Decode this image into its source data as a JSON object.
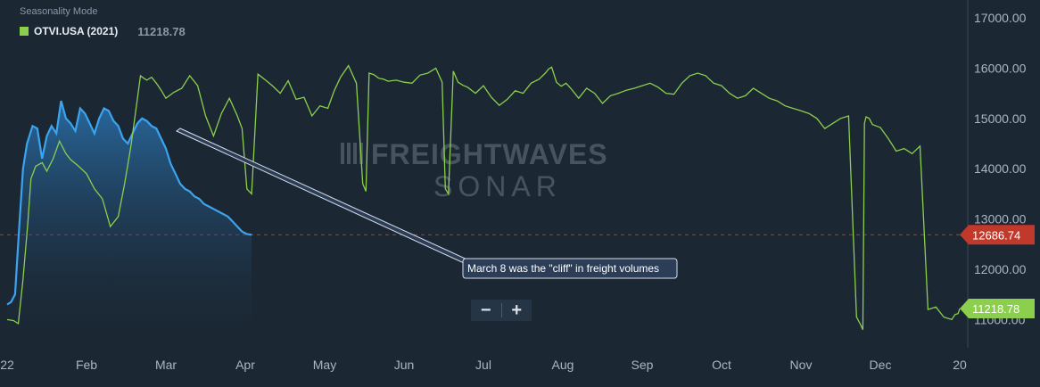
{
  "header": {
    "mode_label": "Seasonality Mode",
    "series_name": "OTVI.USA (2021)",
    "series_value": "11218.78"
  },
  "watermark": {
    "line1": "FREIGHTWAVES",
    "line2": "SONAR"
  },
  "annotation": {
    "text": "March 8 was the \"cliff\" in freight volumes"
  },
  "zoom": {
    "minus": "−",
    "plus": "+"
  },
  "colors": {
    "background": "#1b2733",
    "green_series": "#8ccf4d",
    "blue_series": "#3ba4f0",
    "reference_line": "#c0392b",
    "axis_text": "#aab6c3"
  },
  "chart_data": {
    "type": "line",
    "title": "",
    "xlabel": "",
    "ylabel": "",
    "x_ticks": [
      "22",
      "Feb",
      "Mar",
      "Apr",
      "May",
      "Jun",
      "Jul",
      "Aug",
      "Sep",
      "Oct",
      "Nov",
      "Dec",
      "20"
    ],
    "y_ticks": [
      "11000.00",
      "12000.00",
      "13000.00",
      "14000.00",
      "15000.00",
      "16000.00",
      "17000.00"
    ],
    "ylim": [
      10750,
      17100
    ],
    "xlim": [
      0,
      12
    ],
    "grid": false,
    "reference_line": {
      "value": 12686.74,
      "label": "12686.74"
    },
    "last_value_label": {
      "value": 11218.78,
      "label": "11218.78"
    },
    "series": [
      {
        "name": "OTVI.USA (2021)",
        "x": [
          0.0,
          0.08,
          0.14,
          0.2,
          0.26,
          0.3,
          0.36,
          0.44,
          0.5,
          0.58,
          0.66,
          0.74,
          0.8,
          0.9,
          1.0,
          1.1,
          1.2,
          1.3,
          1.4,
          1.48,
          1.56,
          1.62,
          1.68,
          1.72,
          1.76,
          1.82,
          1.88,
          1.94,
          2.0,
          2.1,
          2.2,
          2.3,
          2.4,
          2.5,
          2.6,
          2.7,
          2.8,
          2.9,
          2.96,
          3.02,
          3.08,
          3.16,
          3.24,
          3.34,
          3.44,
          3.54,
          3.64,
          3.74,
          3.84,
          3.94,
          4.04,
          4.12,
          4.2,
          4.3,
          4.4,
          4.48,
          4.52,
          4.56,
          4.62,
          4.68,
          4.74,
          4.8,
          4.9,
          5.0,
          5.1,
          5.2,
          5.3,
          5.4,
          5.48,
          5.52,
          5.56,
          5.62,
          5.68,
          5.74,
          5.8,
          5.9,
          6.0,
          6.1,
          6.2,
          6.3,
          6.4,
          6.5,
          6.6,
          6.7,
          6.78,
          6.82,
          6.86,
          6.92,
          6.98,
          7.04,
          7.1,
          7.2,
          7.3,
          7.4,
          7.5,
          7.6,
          7.7,
          7.8,
          7.9,
          8.0,
          8.1,
          8.2,
          8.3,
          8.4,
          8.5,
          8.6,
          8.7,
          8.8,
          8.9,
          9.0,
          9.1,
          9.2,
          9.3,
          9.4,
          9.5,
          9.6,
          9.7,
          9.8,
          9.9,
          10.0,
          10.1,
          10.2,
          10.3,
          10.4,
          10.5,
          10.6,
          10.7,
          10.75,
          10.78,
          10.8,
          10.82,
          10.86,
          10.9,
          10.95,
          11.0,
          11.1,
          11.2,
          11.3,
          11.4,
          11.5,
          11.6,
          11.7,
          11.8,
          11.9,
          11.94,
          11.98,
          12.0
        ],
        "y": [
          11000,
          10980,
          10920,
          11800,
          12900,
          13800,
          14050,
          14120,
          13950,
          14200,
          14550,
          14300,
          14180,
          14050,
          13900,
          13600,
          13400,
          12850,
          13050,
          13700,
          14450,
          15150,
          15850,
          15800,
          15760,
          15820,
          15700,
          15560,
          15400,
          15520,
          15600,
          15850,
          15650,
          15050,
          14650,
          15100,
          15400,
          15050,
          14800,
          13600,
          13500,
          15880,
          15780,
          15650,
          15500,
          15750,
          15380,
          15420,
          15050,
          15250,
          15200,
          15550,
          15820,
          16050,
          15700,
          13700,
          13550,
          15900,
          15870,
          15800,
          15780,
          15740,
          15760,
          15720,
          15700,
          15860,
          15900,
          16000,
          15720,
          13600,
          13500,
          15940,
          15720,
          15660,
          15620,
          15500,
          15650,
          15420,
          15260,
          15380,
          15550,
          15500,
          15700,
          15780,
          15900,
          15980,
          16020,
          15720,
          15640,
          15700,
          15600,
          15400,
          15600,
          15500,
          15300,
          15450,
          15500,
          15560,
          15600,
          15650,
          15700,
          15620,
          15500,
          15480,
          15700,
          15850,
          15900,
          15850,
          15700,
          15650,
          15500,
          15400,
          15450,
          15600,
          15500,
          15400,
          15350,
          15250,
          15200,
          15150,
          15100,
          15000,
          14800,
          14900,
          15000,
          15050,
          11050,
          10900,
          10800,
          14900,
          15030,
          15000,
          14880,
          14850,
          14820,
          14600,
          14350,
          14400,
          14300,
          14450,
          11200,
          11250,
          11050,
          11000,
          11100,
          11120,
          11218.78
        ],
        "color": "#8ccf4d"
      },
      {
        "name": "",
        "x": [
          0.0,
          0.05,
          0.1,
          0.15,
          0.2,
          0.25,
          0.32,
          0.38,
          0.44,
          0.5,
          0.56,
          0.62,
          0.68,
          0.74,
          0.8,
          0.86,
          0.92,
          0.98,
          1.04,
          1.1,
          1.16,
          1.22,
          1.28,
          1.34,
          1.4,
          1.46,
          1.52,
          1.58,
          1.64,
          1.7,
          1.76,
          1.82,
          1.88,
          1.94,
          2.0,
          2.06,
          2.12,
          2.18,
          2.24,
          2.3,
          2.36,
          2.42,
          2.48,
          2.54,
          2.6,
          2.66,
          2.72,
          2.78,
          2.84,
          2.9,
          2.96,
          3.02,
          3.08
        ],
        "y": [
          11300,
          11350,
          11500,
          12800,
          14000,
          14500,
          14850,
          14800,
          14200,
          14650,
          14850,
          14700,
          15350,
          15000,
          14900,
          14750,
          15200,
          15100,
          14900,
          14700,
          15000,
          15200,
          15150,
          14950,
          14850,
          14600,
          14500,
          14700,
          14900,
          15000,
          14950,
          14850,
          14800,
          14600,
          14400,
          14100,
          13900,
          13700,
          13600,
          13550,
          13450,
          13400,
          13300,
          13250,
          13200,
          13150,
          13100,
          13050,
          12950,
          12850,
          12750,
          12700,
          12686.74
        ],
        "color": "#3ba4f0"
      }
    ]
  }
}
